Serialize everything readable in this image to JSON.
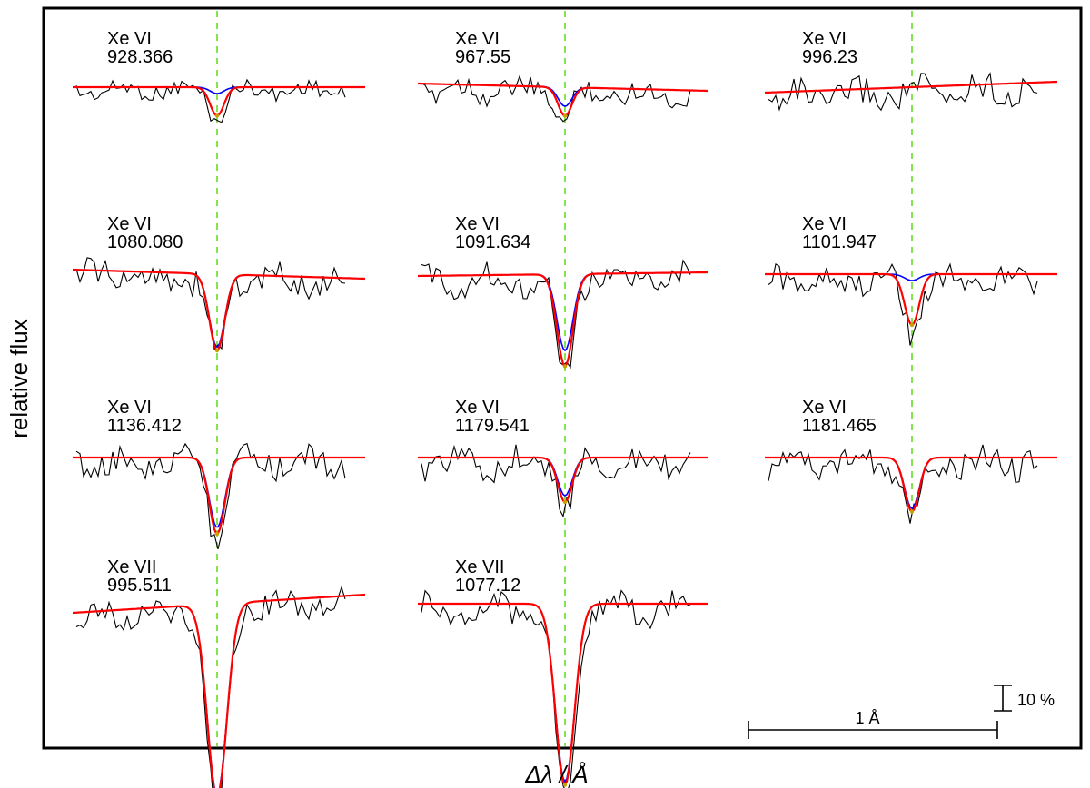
{
  "chart_data": {
    "type": "line",
    "title": "",
    "xlabel": "Δλ / Å",
    "ylabel": "relative flux",
    "colors": {
      "observed": "#000000",
      "model_main": "#ff0000",
      "model_alt": "#0000ff",
      "line_marker": "#66dd22",
      "core": "#c8a000"
    },
    "scale_bars": {
      "wavelength": "1 Å",
      "flux": "10 %"
    },
    "panels": [
      {
        "ion": "Xe VI",
        "wavelength": "928.366",
        "depth_red": 0.09,
        "depth_blue": 0.02,
        "slope": 0.0,
        "ripple": 0.6
      },
      {
        "ion": "Xe VI",
        "wavelength": "967.55",
        "depth_red": 0.09,
        "depth_blue": 0.06,
        "slope": 0.4,
        "ripple": 0.9
      },
      {
        "ion": "Xe VI",
        "wavelength": "996.23",
        "depth_red": 0.0,
        "depth_blue": 0.0,
        "slope": -0.6,
        "ripple": 1.1
      },
      {
        "ion": "Xe VI",
        "wavelength": "1080.080",
        "depth_red": 0.24,
        "depth_blue": 0.23,
        "slope": 0.5,
        "ripple": 1.0
      },
      {
        "ion": "Xe VI",
        "wavelength": "1091.634",
        "depth_red": 0.29,
        "depth_blue": 0.24,
        "slope": -0.2,
        "ripple": 1.0
      },
      {
        "ion": "Xe VI",
        "wavelength": "1101.947",
        "depth_red": 0.16,
        "depth_blue": 0.02,
        "slope": 0.0,
        "ripple": 1.0
      },
      {
        "ion": "Xe VI",
        "wavelength": "1136.412",
        "depth_red": 0.24,
        "depth_blue": 0.22,
        "slope": 0.0,
        "ripple": 1.0
      },
      {
        "ion": "Xe VI",
        "wavelength": "1179.541",
        "depth_red": 0.14,
        "depth_blue": 0.12,
        "slope": 0.0,
        "ripple": 1.0
      },
      {
        "ion": "Xe VI",
        "wavelength": "1181.465",
        "depth_red": 0.17,
        "depth_blue": 0.16,
        "slope": 0.0,
        "ripple": 1.0
      },
      {
        "ion": "Xe VII",
        "wavelength": "995.511",
        "depth_red": 0.61,
        "depth_blue": 0.6,
        "slope": -1.0,
        "ripple": 1.0
      },
      {
        "ion": "Xe VII",
        "wavelength": "1077.12",
        "depth_red": 0.57,
        "depth_blue": 0.56,
        "slope": 0.0,
        "ripple": 1.0
      }
    ]
  }
}
